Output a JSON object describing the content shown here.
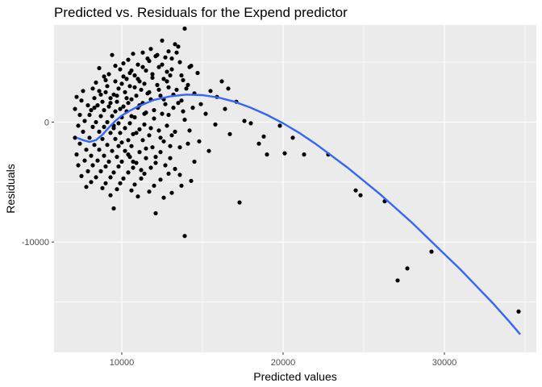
{
  "chart_data": {
    "type": "scatter",
    "title": "Predicted vs. Residuals for the Expend predictor",
    "xlabel": "Predicted values",
    "ylabel": "Residuals",
    "xlim": [
      5800,
      35700
    ],
    "ylim": [
      -19200,
      8100
    ],
    "xticks": [
      10000,
      20000,
      30000
    ],
    "xtick_labels": [
      "10000",
      "20000",
      "30000"
    ],
    "yticks": [
      -10000,
      0
    ],
    "ytick_labels": [
      "-10000",
      "0"
    ],
    "grid": true,
    "legend": "none",
    "point_color": "#000000",
    "smooth_color": "#3366ff",
    "panel_background": "#ebebeb",
    "gridline_color": "#ffffff",
    "points": [
      [
        13900,
        7800
      ],
      [
        12500,
        6800
      ],
      [
        13300,
        6500
      ],
      [
        13500,
        6300
      ],
      [
        11800,
        6100
      ],
      [
        12900,
        5900
      ],
      [
        11300,
        5800
      ],
      [
        10700,
        5700
      ],
      [
        9400,
        5600
      ],
      [
        12100,
        5500
      ],
      [
        12700,
        5400
      ],
      [
        13100,
        5300
      ],
      [
        10400,
        5200
      ],
      [
        11700,
        5100
      ],
      [
        13600,
        5000
      ],
      [
        10100,
        4900
      ],
      [
        11000,
        4800
      ],
      [
        14300,
        4700
      ],
      [
        12300,
        4600
      ],
      [
        8600,
        4500
      ],
      [
        9900,
        4400
      ],
      [
        10600,
        4300
      ],
      [
        11500,
        4300
      ],
      [
        12800,
        4200
      ],
      [
        14700,
        4100
      ],
      [
        9200,
        4000
      ],
      [
        10800,
        3900
      ],
      [
        13000,
        3900
      ],
      [
        8900,
        3800
      ],
      [
        11900,
        3700
      ],
      [
        10300,
        3600
      ],
      [
        12600,
        3600
      ],
      [
        13800,
        3500
      ],
      [
        9600,
        3400
      ],
      [
        11100,
        3400
      ],
      [
        16200,
        3400
      ],
      [
        8400,
        3300
      ],
      [
        10000,
        3200
      ],
      [
        11400,
        3200
      ],
      [
        12200,
        3100
      ],
      [
        14100,
        3100
      ],
      [
        9100,
        3000
      ],
      [
        10500,
        3000
      ],
      [
        12900,
        2900
      ],
      [
        16600,
        2800
      ],
      [
        8200,
        2800
      ],
      [
        9800,
        2800
      ],
      [
        11200,
        2700
      ],
      [
        13400,
        2700
      ],
      [
        15500,
        2600
      ],
      [
        7600,
        2600
      ],
      [
        9000,
        2500
      ],
      [
        10200,
        2500
      ],
      [
        11600,
        2400
      ],
      [
        14500,
        2400
      ],
      [
        8700,
        2300
      ],
      [
        9500,
        2300
      ],
      [
        10900,
        2200
      ],
      [
        12400,
        2200
      ],
      [
        15900,
        2100
      ],
      [
        7200,
        2100
      ],
      [
        8300,
        2000
      ],
      [
        9300,
        2000
      ],
      [
        10600,
        1900
      ],
      [
        11800,
        1900
      ],
      [
        13700,
        1800
      ],
      [
        17100,
        1700
      ],
      [
        7500,
        1800
      ],
      [
        8800,
        1700
      ],
      [
        9700,
        1700
      ],
      [
        10400,
        1600
      ],
      [
        11300,
        1600
      ],
      [
        12700,
        1500
      ],
      [
        14900,
        1500
      ],
      [
        7900,
        1400
      ],
      [
        8500,
        1400
      ],
      [
        9200,
        1300
      ],
      [
        10100,
        1300
      ],
      [
        11000,
        1200
      ],
      [
        13200,
        1200
      ],
      [
        16400,
        1100
      ],
      [
        7100,
        1100
      ],
      [
        8100,
        1000
      ],
      [
        8900,
        1000
      ],
      [
        9600,
        900
      ],
      [
        10300,
        900
      ],
      [
        11500,
        800
      ],
      [
        12500,
        700
      ],
      [
        15200,
        700
      ],
      [
        7400,
        600
      ],
      [
        8000,
        600
      ],
      [
        8700,
        500
      ],
      [
        9400,
        500
      ],
      [
        10000,
        400
      ],
      [
        10800,
        400
      ],
      [
        12000,
        300
      ],
      [
        13900,
        200
      ],
      [
        17600,
        100
      ],
      [
        7700,
        100
      ],
      [
        8400,
        0
      ],
      [
        9100,
        0
      ],
      [
        9800,
        -100
      ],
      [
        10500,
        -100
      ],
      [
        11400,
        -200
      ],
      [
        12800,
        -300
      ],
      [
        15800,
        -200
      ],
      [
        18000,
        -100
      ],
      [
        7300,
        -300
      ],
      [
        8200,
        -400
      ],
      [
        8900,
        -400
      ],
      [
        9500,
        -500
      ],
      [
        10200,
        -500
      ],
      [
        11100,
        -600
      ],
      [
        12300,
        -700
      ],
      [
        14200,
        -700
      ],
      [
        19800,
        -300
      ],
      [
        7600,
        -800
      ],
      [
        8600,
        -800
      ],
      [
        9300,
        -900
      ],
      [
        9900,
        -900
      ],
      [
        10700,
        -1000
      ],
      [
        11700,
        -1100
      ],
      [
        13100,
        -1100
      ],
      [
        16700,
        -1000
      ],
      [
        18800,
        -1200
      ],
      [
        7100,
        -1300
      ],
      [
        8000,
        -1300
      ],
      [
        8800,
        -1400
      ],
      [
        9600,
        -1400
      ],
      [
        10400,
        -1500
      ],
      [
        11300,
        -1500
      ],
      [
        12600,
        -1600
      ],
      [
        14800,
        -1600
      ],
      [
        20600,
        -1300
      ],
      [
        18500,
        -1800
      ],
      [
        7400,
        -1800
      ],
      [
        8300,
        -1900
      ],
      [
        9100,
        -1900
      ],
      [
        9800,
        -2000
      ],
      [
        10600,
        -2000
      ],
      [
        11900,
        -2100
      ],
      [
        13600,
        -2100
      ],
      [
        7800,
        -2300
      ],
      [
        8600,
        -2300
      ],
      [
        9400,
        -2400
      ],
      [
        10200,
        -2400
      ],
      [
        11100,
        -2500
      ],
      [
        12400,
        -2500
      ],
      [
        15400,
        -2400
      ],
      [
        19000,
        -2700
      ],
      [
        20100,
        -2600
      ],
      [
        21300,
        -2700
      ],
      [
        22800,
        -2700
      ],
      [
        7200,
        -2700
      ],
      [
        8100,
        -2800
      ],
      [
        8900,
        -2800
      ],
      [
        9700,
        -2900
      ],
      [
        10500,
        -2900
      ],
      [
        11500,
        -3000
      ],
      [
        13000,
        -3000
      ],
      [
        7700,
        -3200
      ],
      [
        8500,
        -3200
      ],
      [
        9200,
        -3300
      ],
      [
        10000,
        -3300
      ],
      [
        10900,
        -3400
      ],
      [
        12100,
        -3400
      ],
      [
        14500,
        -3300
      ],
      [
        7300,
        -3600
      ],
      [
        8200,
        -3600
      ],
      [
        9000,
        -3700
      ],
      [
        9800,
        -3700
      ],
      [
        10700,
        -3800
      ],
      [
        11800,
        -3800
      ],
      [
        13300,
        -3900
      ],
      [
        7900,
        -4100
      ],
      [
        8700,
        -4100
      ],
      [
        9500,
        -4200
      ],
      [
        10400,
        -4200
      ],
      [
        11400,
        -4300
      ],
      [
        12900,
        -4300
      ],
      [
        7500,
        -4500
      ],
      [
        8400,
        -4600
      ],
      [
        9300,
        -4600
      ],
      [
        10100,
        -4700
      ],
      [
        11200,
        -4700
      ],
      [
        12400,
        -4800
      ],
      [
        14300,
        -4900
      ],
      [
        8100,
        -5000
      ],
      [
        9000,
        -5100
      ],
      [
        9900,
        -5100
      ],
      [
        10800,
        -5200
      ],
      [
        12000,
        -5300
      ],
      [
        13700,
        -5300
      ],
      [
        7800,
        -5400
      ],
      [
        8800,
        -5500
      ],
      [
        9700,
        -5600
      ],
      [
        10600,
        -5700
      ],
      [
        11700,
        -5800
      ],
      [
        13100,
        -5900
      ],
      [
        9300,
        -6100
      ],
      [
        11000,
        -6200
      ],
      [
        12600,
        -6300
      ],
      [
        24500,
        -5700
      ],
      [
        24800,
        -6100
      ],
      [
        26300,
        -6600
      ],
      [
        17300,
        -6700
      ],
      [
        9500,
        -7200
      ],
      [
        12100,
        -7600
      ],
      [
        13900,
        -9500
      ],
      [
        29200,
        -10800
      ],
      [
        27700,
        -12200
      ],
      [
        27100,
        -13200
      ],
      [
        34600,
        -15800
      ],
      [
        8300,
        1200
      ],
      [
        8600,
        2600
      ],
      [
        9000,
        3500
      ],
      [
        9300,
        1600
      ],
      [
        9500,
        -300
      ],
      [
        9600,
        4700
      ],
      [
        9700,
        2200
      ],
      [
        9900,
        1100
      ],
      [
        10000,
        -1700
      ],
      [
        10100,
        3800
      ],
      [
        10300,
        2000
      ],
      [
        10400,
        -2700
      ],
      [
        10500,
        4100
      ],
      [
        10600,
        500
      ],
      [
        10700,
        -3300
      ],
      [
        10800,
        2900
      ],
      [
        10900,
        -900
      ],
      [
        11000,
        3600
      ],
      [
        11100,
        1400
      ],
      [
        11200,
        -4000
      ],
      [
        11300,
        4600
      ],
      [
        11400,
        700
      ],
      [
        11500,
        -2200
      ],
      [
        11600,
        5300
      ],
      [
        11700,
        2500
      ],
      [
        11800,
        -500
      ],
      [
        11900,
        4000
      ],
      [
        12000,
        1000
      ],
      [
        12100,
        -2900
      ],
      [
        12200,
        5600
      ],
      [
        12300,
        2700
      ],
      [
        12400,
        -1300
      ],
      [
        12500,
        4800
      ],
      [
        12600,
        1900
      ],
      [
        12700,
        -3600
      ],
      [
        12800,
        3400
      ],
      [
        12900,
        600
      ],
      [
        13000,
        -2000
      ],
      [
        13100,
        4400
      ],
      [
        13200,
        2300
      ],
      [
        13300,
        -800
      ],
      [
        13400,
        5800
      ],
      [
        13500,
        1600
      ],
      [
        13600,
        -4400
      ],
      [
        13700,
        3900
      ],
      [
        13800,
        900
      ],
      [
        14000,
        2800
      ],
      [
        14100,
        -1800
      ],
      [
        14200,
        4600
      ],
      [
        14400,
        1200
      ]
    ],
    "smooth": [
      [
        7200,
        -1300
      ],
      [
        7600,
        -1500
      ],
      [
        8000,
        -1650
      ],
      [
        8400,
        -1500
      ],
      [
        8800,
        -1050
      ],
      [
        9200,
        -450
      ],
      [
        9600,
        100
      ],
      [
        10000,
        550
      ],
      [
        10500,
        950
      ],
      [
        11000,
        1300
      ],
      [
        12000,
        1850
      ],
      [
        13000,
        2150
      ],
      [
        14000,
        2300
      ],
      [
        15000,
        2250
      ],
      [
        16000,
        2050
      ],
      [
        17000,
        1700
      ],
      [
        18000,
        1200
      ],
      [
        19000,
        600
      ],
      [
        20000,
        -100
      ],
      [
        21000,
        -900
      ],
      [
        22000,
        -1800
      ],
      [
        23000,
        -2800
      ],
      [
        24000,
        -3800
      ],
      [
        25000,
        -4900
      ],
      [
        26000,
        -6000
      ],
      [
        27000,
        -7200
      ],
      [
        28000,
        -8400
      ],
      [
        29000,
        -9700
      ],
      [
        30000,
        -11000
      ],
      [
        31000,
        -12300
      ],
      [
        32000,
        -13700
      ],
      [
        33000,
        -15100
      ],
      [
        34000,
        -16600
      ],
      [
        34700,
        -17700
      ]
    ]
  }
}
